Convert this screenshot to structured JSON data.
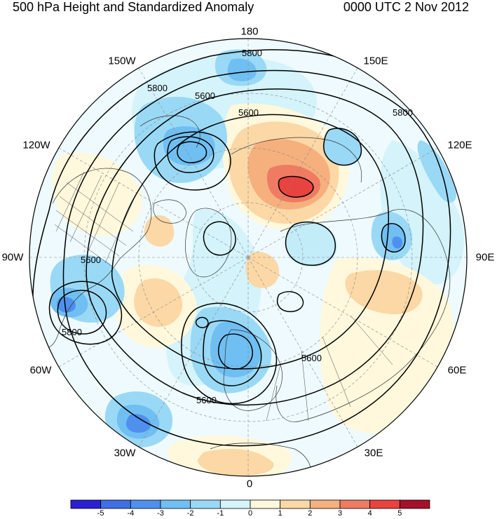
{
  "titles": {
    "left": "500 hPa Height and Standardized Anomaly",
    "right": "0000 UTC 2 Nov 2012"
  },
  "longitude_labels": [
    "180",
    "150E",
    "120E",
    "90E",
    "60E",
    "30E",
    "0",
    "30W",
    "60W",
    "90W",
    "120W",
    "150W"
  ],
  "contour_labels": [
    "5800",
    "5800",
    "5600",
    "5600",
    "5800",
    "5600",
    "5800",
    "5600",
    "5600"
  ],
  "colorbar": {
    "colors": [
      "#2b1fd6",
      "#3f6ee6",
      "#4f90ee",
      "#70bff3",
      "#9ad9f5",
      "#d4f3fb",
      "#fff8dc",
      "#fbd8a6",
      "#f5b07e",
      "#ee7b62",
      "#e8433f",
      "#a6102a"
    ],
    "labels": [
      "-5",
      "-4",
      "-3",
      "-2",
      "-1",
      "0",
      "1",
      "2",
      "3",
      "4",
      "5"
    ]
  },
  "anomaly_colors": {
    "neg1": "#d4f3fb",
    "neg2": "#9ad9f5",
    "neg3": "#70bff3",
    "neg4": "#4f90ee",
    "neg5": "#3f6ee6",
    "pos1": "#fff8dc",
    "pos2": "#fbd8a6",
    "pos3": "#f5b07e",
    "pos4": "#ee7b62",
    "pos5": "#e8433f"
  }
}
